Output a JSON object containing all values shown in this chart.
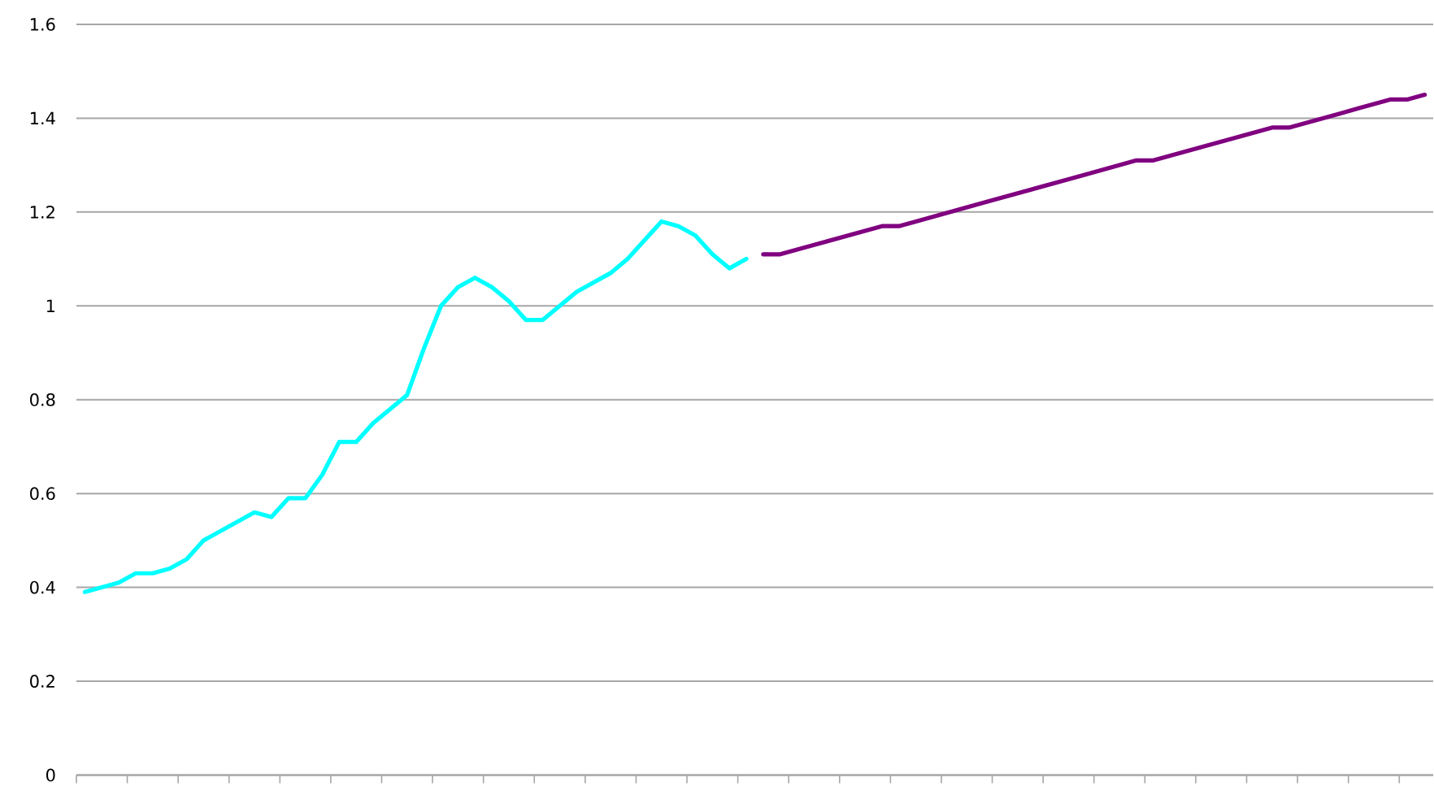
{
  "chart_data": {
    "type": "line",
    "categories": [
      null,
      null,
      null,
      null,
      null,
      null,
      null,
      null,
      null,
      null,
      null,
      null,
      null,
      null,
      null,
      null,
      null,
      null,
      null,
      null,
      null,
      null,
      null,
      null,
      null,
      null,
      null,
      null,
      null,
      null,
      null,
      null,
      null,
      null,
      null,
      null,
      null,
      null,
      null,
      null,
      null,
      null,
      null,
      null,
      null,
      null,
      null,
      null,
      null,
      null,
      null,
      null,
      null,
      null,
      null,
      null,
      null,
      null,
      null,
      null,
      null,
      null,
      null,
      null,
      null,
      null,
      null,
      null,
      null,
      null,
      null,
      null,
      null,
      null,
      null,
      null,
      null,
      null,
      null,
      null
    ],
    "series": [
      {
        "color": "#00ffff",
        "values": [
          0.39,
          0.4,
          0.41,
          0.43,
          0.43,
          0.44,
          0.46,
          0.5,
          0.52,
          0.54,
          0.56,
          0.55,
          0.59,
          0.59,
          0.64,
          0.71,
          0.71,
          0.75,
          0.78,
          0.81,
          0.91,
          1.0,
          1.04,
          1.06,
          1.04,
          1.01,
          0.97,
          0.97,
          1.0,
          1.03,
          1.05,
          1.07,
          1.1,
          1.14,
          1.18,
          1.17,
          1.15,
          1.11,
          1.08,
          1.1,
          null,
          null,
          null,
          null,
          null,
          null,
          null,
          null,
          null,
          null,
          null,
          null,
          null,
          null,
          null,
          null,
          null,
          null,
          null,
          null,
          null,
          null,
          null,
          null,
          null,
          null,
          null,
          null,
          null,
          null,
          null,
          null,
          null,
          null,
          null,
          null,
          null,
          null,
          null,
          null
        ]
      },
      {
        "color": "#800080",
        "values": [
          null,
          null,
          null,
          null,
          null,
          null,
          null,
          null,
          null,
          null,
          null,
          null,
          null,
          null,
          null,
          null,
          null,
          null,
          null,
          null,
          null,
          null,
          null,
          null,
          null,
          null,
          null,
          null,
          null,
          null,
          null,
          null,
          null,
          null,
          null,
          null,
          null,
          null,
          null,
          null,
          1.11,
          1.11,
          1.12,
          1.13,
          1.14,
          1.15,
          1.16,
          1.17,
          1.17,
          1.18,
          1.19,
          1.2,
          1.21,
          1.22,
          1.23,
          1.24,
          1.25,
          1.26,
          1.27,
          1.28,
          1.29,
          1.3,
          1.31,
          1.31,
          1.32,
          1.33,
          1.34,
          1.35,
          1.36,
          1.37,
          1.38,
          1.38,
          1.39,
          1.4,
          1.41,
          1.42,
          1.43,
          1.44,
          1.44,
          1.45
        ]
      }
    ],
    "ylim": [
      0,
      1.6
    ],
    "yticks": [
      0,
      0.2,
      0.4,
      0.6,
      0.8,
      1,
      1.2,
      1.4,
      1.6
    ],
    "grid": "y",
    "tick_labels": "y",
    "legend": false,
    "marker": "none",
    "line_style": "solid"
  }
}
